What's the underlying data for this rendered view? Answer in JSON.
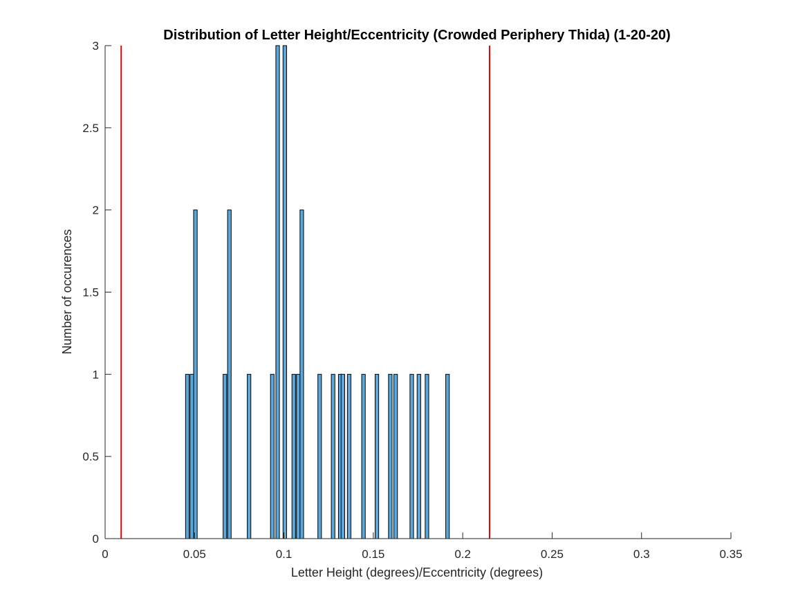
{
  "chart_data": {
    "type": "bar",
    "title": "Distribution of Letter Height/Eccentricity (Crowded Periphery Thida) (1-20-20)",
    "xlabel": "Letter Height (degrees)/Eccentricity (degrees)",
    "ylabel": "Number of occurences",
    "xlim": [
      0,
      0.35
    ],
    "ylim": [
      0,
      3
    ],
    "xticks": [
      "0",
      "0.05",
      "0.1",
      "0.15",
      "0.2",
      "0.25",
      "0.3",
      "0.35"
    ],
    "yticks": [
      "0",
      "0.5",
      "1",
      "1.5",
      "2",
      "2.5",
      "3"
    ],
    "grid": false,
    "bin_width": 0.002,
    "bins": [
      {
        "x": 0.046,
        "count": 1
      },
      {
        "x": 0.0485,
        "count": 1
      },
      {
        "x": 0.0505,
        "count": 2
      },
      {
        "x": 0.067,
        "count": 1
      },
      {
        "x": 0.0695,
        "count": 2
      },
      {
        "x": 0.0805,
        "count": 1
      },
      {
        "x": 0.0935,
        "count": 1
      },
      {
        "x": 0.0965,
        "count": 3
      },
      {
        "x": 0.1005,
        "count": 3
      },
      {
        "x": 0.1055,
        "count": 1
      },
      {
        "x": 0.108,
        "count": 1
      },
      {
        "x": 0.11,
        "count": 2
      },
      {
        "x": 0.12,
        "count": 1
      },
      {
        "x": 0.1275,
        "count": 1
      },
      {
        "x": 0.1315,
        "count": 1
      },
      {
        "x": 0.133,
        "count": 1
      },
      {
        "x": 0.1365,
        "count": 1
      },
      {
        "x": 0.1445,
        "count": 1
      },
      {
        "x": 0.152,
        "count": 1
      },
      {
        "x": 0.1595,
        "count": 1
      },
      {
        "x": 0.1625,
        "count": 1
      },
      {
        "x": 0.1715,
        "count": 1
      },
      {
        "x": 0.1755,
        "count": 1
      },
      {
        "x": 0.18,
        "count": 1
      },
      {
        "x": 0.1915,
        "count": 1
      }
    ],
    "reference_lines": [
      {
        "x": 0.009,
        "color": "#e00000"
      },
      {
        "x": 0.215,
        "color": "#e00000"
      }
    ],
    "bar_color": "#5aa8dc",
    "bar_edge_color": "#000000"
  }
}
